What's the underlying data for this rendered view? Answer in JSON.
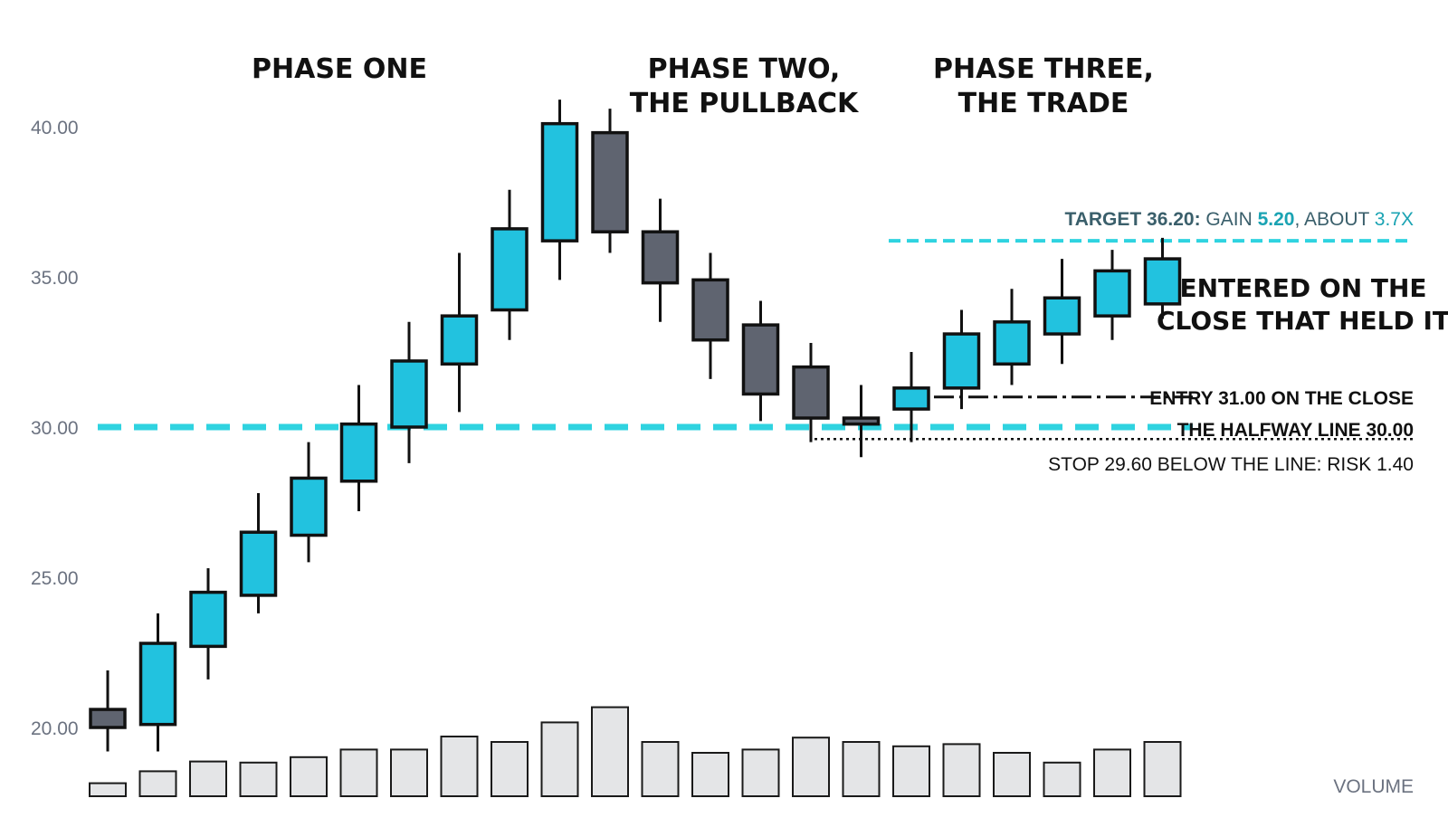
{
  "colors": {
    "up": "#22c2df",
    "down": "#5f6470",
    "outline": "#111111",
    "level": "#2fd3e0",
    "volume_fill": "#e4e5e7",
    "target_text_dark": "#3a5f6b",
    "target_text_teal": "#1aa3b3"
  },
  "chart_data": {
    "type": "candlestick",
    "ylim": [
      18.3,
      41.7
    ],
    "yticks": [
      "40.00",
      "35.00",
      "30.00",
      "25.00",
      "20.00"
    ],
    "ytick_values": [
      40,
      35,
      30,
      25,
      20
    ],
    "volume_label": "VOLUME",
    "phases": {
      "one": "PHASE ONE",
      "two_line1": "PHASE TWO,",
      "two_line2": "THE PULLBACK",
      "three_line1": "PHASE THREE,",
      "three_line2": "THE TRADE"
    },
    "candles": [
      {
        "o": 20.6,
        "h": 21.9,
        "l": 19.2,
        "c": 20.0,
        "v": 0.12
      },
      {
        "o": 20.1,
        "h": 23.8,
        "l": 19.2,
        "c": 22.8,
        "v": 0.23
      },
      {
        "o": 22.7,
        "h": 25.3,
        "l": 21.6,
        "c": 24.5,
        "v": 0.32
      },
      {
        "o": 24.4,
        "h": 27.8,
        "l": 23.8,
        "c": 26.5,
        "v": 0.31
      },
      {
        "o": 26.4,
        "h": 29.5,
        "l": 25.5,
        "c": 28.3,
        "v": 0.36
      },
      {
        "o": 28.2,
        "h": 31.4,
        "l": 27.2,
        "c": 30.1,
        "v": 0.43
      },
      {
        "o": 30.0,
        "h": 33.5,
        "l": 28.8,
        "c": 32.2,
        "v": 0.43
      },
      {
        "o": 32.1,
        "h": 35.8,
        "l": 30.5,
        "c": 33.7,
        "v": 0.55
      },
      {
        "o": 33.9,
        "h": 37.9,
        "l": 32.9,
        "c": 36.6,
        "v": 0.5
      },
      {
        "o": 36.2,
        "h": 40.9,
        "l": 34.9,
        "c": 40.1,
        "v": 0.68
      },
      {
        "o": 39.8,
        "h": 40.6,
        "l": 35.8,
        "c": 36.5,
        "v": 0.82
      },
      {
        "o": 36.5,
        "h": 37.6,
        "l": 33.5,
        "c": 34.8,
        "v": 0.5
      },
      {
        "o": 34.9,
        "h": 35.8,
        "l": 31.6,
        "c": 32.9,
        "v": 0.4
      },
      {
        "o": 33.4,
        "h": 34.2,
        "l": 30.2,
        "c": 31.1,
        "v": 0.43
      },
      {
        "o": 32.0,
        "h": 32.8,
        "l": 29.5,
        "c": 30.3,
        "v": 0.54
      },
      {
        "o": 30.3,
        "h": 31.4,
        "l": 29.0,
        "c": 30.1,
        "v": 0.5
      },
      {
        "o": 30.6,
        "h": 32.5,
        "l": 29.5,
        "c": 31.3,
        "v": 0.46
      },
      {
        "o": 31.3,
        "h": 33.9,
        "l": 30.6,
        "c": 33.1,
        "v": 0.48
      },
      {
        "o": 32.1,
        "h": 34.6,
        "l": 31.4,
        "c": 33.5,
        "v": 0.4
      },
      {
        "o": 33.1,
        "h": 35.6,
        "l": 32.1,
        "c": 34.3,
        "v": 0.31
      },
      {
        "o": 33.7,
        "h": 35.9,
        "l": 32.9,
        "c": 35.2,
        "v": 0.43
      },
      {
        "o": 34.1,
        "h": 36.3,
        "l": 33.6,
        "c": 35.6,
        "v": 0.5
      }
    ],
    "levels": {
      "target": {
        "value": 36.2,
        "label_dark": "TARGET 36.20:",
        "label_mid1": " GAIN ",
        "label_teal1": "5.20",
        "label_mid2": ", ABOUT ",
        "label_teal2": "3.7X"
      },
      "entry": {
        "value": 31.0,
        "label": "ENTRY 31.00 ON THE CLOSE"
      },
      "halfway": {
        "value": 30.0,
        "label": "THE HALFWAY LINE 30.00"
      },
      "stop": {
        "value": 29.6,
        "label": "STOP 29.60 BELOW THE LINE: RISK 1.40"
      }
    },
    "annotation": {
      "line1": "ENTERED ON THE",
      "line2": "CLOSE THAT HELD IT"
    }
  }
}
